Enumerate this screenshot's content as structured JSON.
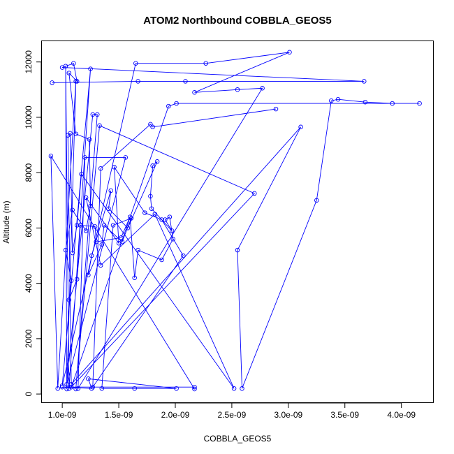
{
  "chart_data": {
    "type": "scatter",
    "title": "ATOM2 Northbound COBBLA_GEOS5",
    "xlabel": "COBBLA_GEOS5",
    "ylabel": "Altitude (m)",
    "xlim": [
      8.2e-10,
      4.28e-09
    ],
    "ylim": [
      -300,
      12750
    ],
    "x_ticks": [
      1e-09,
      1.5e-09,
      2e-09,
      2.5e-09,
      3e-09,
      3.5e-09,
      4e-09
    ],
    "x_tick_labels": [
      "1.0e-09",
      "1.5e-09",
      "2.0e-09",
      "2.5e-09",
      "3.0e-09",
      "3.5e-09",
      "4.0e-09"
    ],
    "y_ticks": [
      0,
      2000,
      4000,
      6000,
      8000,
      10000,
      12000
    ],
    "y_tick_labels": [
      "0",
      "2000",
      "4000",
      "6000",
      "8000",
      "10000",
      "12000"
    ],
    "grid": false,
    "line_color": "#0000ff",
    "marker": "open-circle",
    "series": [
      {
        "points": [
          [
            2.17e-09,
            180
          ],
          [
            9e-10,
            8600
          ],
          [
            9.6e-10,
            200
          ],
          [
            1.12e-09,
            11300
          ],
          [
            1.04e-09,
            180
          ],
          [
            1.03e-09,
            11850
          ],
          [
            1.06e-09,
            200
          ],
          [
            1.25e-09,
            11750
          ],
          [
            1e-09,
            300
          ],
          [
            1.65e-09,
            11950
          ],
          [
            2.27e-09,
            11950
          ],
          [
            3.01e-09,
            12350
          ],
          [
            2.17e-09,
            10900
          ],
          [
            2.55e-09,
            11000
          ],
          [
            2.77e-09,
            11050
          ],
          [
            1.14e-09,
            200
          ],
          [
            1.2e-09,
            8550
          ],
          [
            1.56e-09,
            8550
          ],
          [
            1.04e-09,
            350
          ],
          [
            1.27e-09,
            10100
          ],
          [
            1.31e-09,
            10100
          ],
          [
            1.12e-09,
            180
          ],
          [
            1.33e-09,
            9700
          ],
          [
            2.7e-09,
            7250
          ],
          [
            1.08e-09,
            250
          ],
          [
            1.94e-09,
            10400
          ],
          [
            2.01e-09,
            10500
          ],
          [
            4.16e-09,
            10500
          ],
          [
            3.92e-09,
            10500
          ],
          [
            3.68e-09,
            10550
          ],
          [
            3.44e-09,
            10650
          ],
          [
            3.38e-09,
            10600
          ],
          [
            3.25e-09,
            7000
          ],
          [
            2.59e-09,
            200
          ],
          [
            2.55e-09,
            5200
          ],
          [
            3.11e-09,
            9650
          ],
          [
            1.08e-09,
            350
          ],
          [
            1.05e-09,
            9350
          ],
          [
            1.07e-09,
            9420
          ],
          [
            1.09e-09,
            5100
          ],
          [
            1.13e-09,
            6100
          ],
          [
            1.17e-09,
            7950
          ],
          [
            2.52e-09,
            200
          ],
          [
            1.82e-09,
            6500
          ],
          [
            1.34e-09,
            4650
          ],
          [
            1.21e-09,
            7100
          ],
          [
            1.5e-09,
            5450
          ],
          [
            1.46e-09,
            8200
          ],
          [
            1.73e-09,
            6550
          ],
          [
            1.88e-09,
            6300
          ],
          [
            2.07e-09,
            5000
          ],
          [
            1.27e-09,
            250
          ],
          [
            1.34e-09,
            8150
          ],
          [
            1.78e-09,
            9750
          ],
          [
            1.8e-09,
            9650
          ],
          [
            2.89e-09,
            10300
          ]
        ]
      },
      {
        "points": [
          [
            9.1e-10,
            11250
          ],
          [
            1.67e-09,
            11300
          ],
          [
            2.09e-09,
            11300
          ],
          [
            3.67e-09,
            11300
          ],
          [
            1e-09,
            11800
          ],
          [
            1.1e-09,
            11950
          ],
          [
            1.13e-09,
            11300
          ],
          [
            1.06e-09,
            11600
          ],
          [
            1.12e-09,
            9400
          ],
          [
            1.24e-09,
            9200
          ],
          [
            1.25e-09,
            6800
          ],
          [
            1.21e-09,
            5900
          ],
          [
            1.09e-09,
            6650
          ],
          [
            1.03e-09,
            5200
          ],
          [
            1.08e-09,
            4100
          ],
          [
            1.06e-09,
            3400
          ],
          [
            1.13e-09,
            4150
          ],
          [
            1.16e-09,
            6100
          ],
          [
            1.29e-09,
            6050
          ],
          [
            1.3e-09,
            5500
          ],
          [
            1.52e-09,
            5650
          ],
          [
            1.6e-09,
            6400
          ],
          [
            1.64e-09,
            4200
          ],
          [
            1.67e-09,
            5200
          ],
          [
            1.88e-09,
            4850
          ],
          [
            1.98e-09,
            5600
          ],
          [
            1.95e-09,
            6400
          ],
          [
            1.91e-09,
            6300
          ],
          [
            1.97e-09,
            5900
          ],
          [
            1.79e-09,
            6700
          ],
          [
            1.78e-09,
            7150
          ],
          [
            1.8e-09,
            8250
          ],
          [
            1.84e-09,
            8400
          ],
          [
            1.58e-09,
            6000
          ],
          [
            1.41e-09,
            6700
          ],
          [
            1.43e-09,
            7350
          ],
          [
            1.26e-09,
            5000
          ],
          [
            1.23e-09,
            4300
          ],
          [
            1.35e-09,
            5400
          ],
          [
            1.37e-09,
            6100
          ],
          [
            1.53e-09,
            5500
          ],
          [
            1.61e-09,
            6350
          ],
          [
            1.45e-09,
            6100
          ],
          [
            1.35e-09,
            200
          ],
          [
            1.64e-09,
            200
          ],
          [
            2.01e-09,
            200
          ],
          [
            1.23e-09,
            550
          ],
          [
            1.26e-09,
            200
          ],
          [
            1e-09,
            250
          ],
          [
            2.17e-09,
            250
          ]
        ]
      }
    ]
  }
}
